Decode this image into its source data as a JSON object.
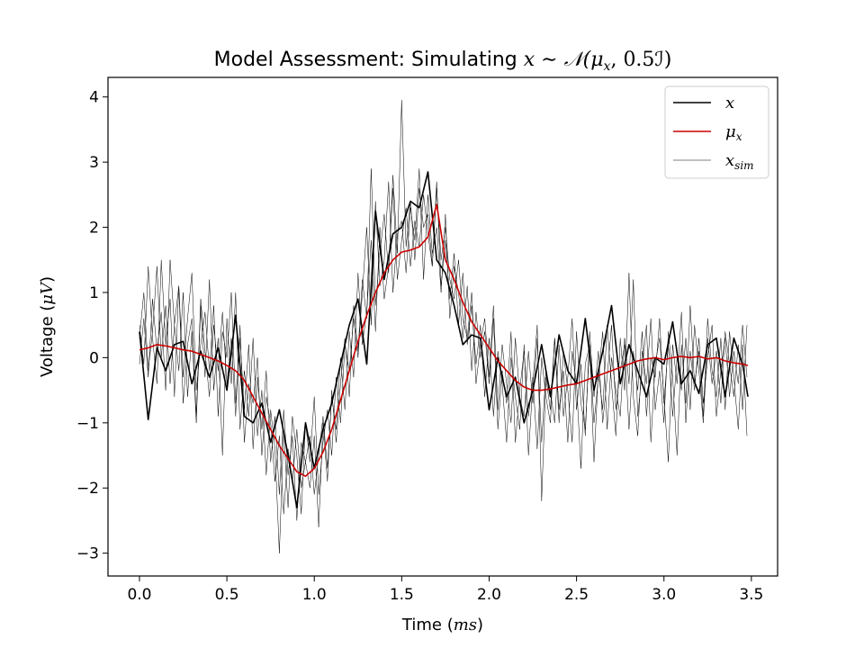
{
  "chart_data": {
    "type": "line",
    "title": {
      "prefix": "Model Assessment: Simulating ",
      "expr": "x ∼ 𝒩(μ",
      "sub": "x",
      "suffix": ", 0.5ℐ)"
    },
    "xlabel": {
      "text": "Time (",
      "var": "ms",
      "close": ")"
    },
    "ylabel": {
      "text": "Voltage (",
      "var": "μV",
      "close": ")"
    },
    "xlim": [
      -0.18,
      3.65
    ],
    "ylim": [
      -3.35,
      4.3
    ],
    "xticks": [
      0.0,
      0.5,
      1.0,
      1.5,
      2.0,
      2.5,
      3.0,
      3.5
    ],
    "xtick_labels": [
      "0.0",
      "0.5",
      "1.0",
      "1.5",
      "2.0",
      "2.5",
      "3.0",
      "3.5"
    ],
    "yticks": [
      -3,
      -2,
      -1,
      0,
      1,
      2,
      3,
      4
    ],
    "ytick_labels": [
      "−3",
      "−2",
      "−1",
      "0",
      "1",
      "2",
      "3",
      "4"
    ],
    "grid": false,
    "legend_position": "top-right",
    "legend": [
      {
        "label": "x",
        "sub": "",
        "color": "#000000"
      },
      {
        "label": "μ",
        "sub": "x",
        "color": "#cc0000"
      },
      {
        "label": "x",
        "sub": "sim",
        "color": "#000000"
      }
    ],
    "series": [
      {
        "key": "x",
        "color": "#000000",
        "x": [
          0.0,
          0.05,
          0.1,
          0.15,
          0.2,
          0.25,
          0.3,
          0.35,
          0.4,
          0.45,
          0.5,
          0.55,
          0.6,
          0.65,
          0.7,
          0.75,
          0.8,
          0.85,
          0.9,
          0.95,
          1.0,
          1.05,
          1.1,
          1.15,
          1.2,
          1.25,
          1.3,
          1.35,
          1.4,
          1.45,
          1.5,
          1.55,
          1.6,
          1.65,
          1.7,
          1.75,
          1.8,
          1.85,
          1.9,
          1.95,
          2.0,
          2.05,
          2.1,
          2.15,
          2.2,
          2.25,
          2.3,
          2.35,
          2.4,
          2.45,
          2.5,
          2.55,
          2.6,
          2.65,
          2.7,
          2.75,
          2.8,
          2.85,
          2.9,
          2.95,
          3.0,
          3.05,
          3.1,
          3.15,
          3.2,
          3.25,
          3.3,
          3.35,
          3.4,
          3.45,
          3.48
        ],
        "y": [
          0.4,
          -0.95,
          0.15,
          -0.2,
          0.2,
          0.25,
          -0.4,
          0.1,
          -0.3,
          0.15,
          -0.5,
          0.65,
          -0.9,
          -1.0,
          -0.7,
          -1.3,
          -0.8,
          -1.5,
          -2.3,
          -1.0,
          -1.7,
          -1.1,
          -0.7,
          -0.1,
          0.5,
          0.9,
          -0.1,
          2.25,
          1.2,
          1.9,
          2.0,
          2.4,
          2.3,
          2.85,
          1.5,
          1.3,
          0.8,
          0.2,
          0.35,
          0.3,
          -0.8,
          0.0,
          -0.6,
          -0.3,
          -1.0,
          -0.5,
          0.2,
          -0.6,
          0.35,
          -0.2,
          -0.4,
          0.6,
          -0.5,
          0.1,
          0.8,
          -0.4,
          0.2,
          -0.2,
          -0.6,
          0.0,
          -0.1,
          0.55,
          -0.4,
          -0.2,
          -0.55,
          0.2,
          0.3,
          -0.6,
          0.3,
          -0.1,
          -0.6
        ]
      },
      {
        "key": "mu",
        "color": "#cc0000",
        "x": [
          0.0,
          0.05,
          0.1,
          0.15,
          0.2,
          0.25,
          0.3,
          0.35,
          0.4,
          0.45,
          0.5,
          0.55,
          0.6,
          0.65,
          0.7,
          0.75,
          0.8,
          0.85,
          0.9,
          0.95,
          1.0,
          1.05,
          1.1,
          1.15,
          1.2,
          1.25,
          1.3,
          1.35,
          1.4,
          1.45,
          1.5,
          1.55,
          1.6,
          1.65,
          1.7,
          1.75,
          1.8,
          1.85,
          1.9,
          1.95,
          2.0,
          2.05,
          2.1,
          2.15,
          2.2,
          2.25,
          2.3,
          2.35,
          2.4,
          2.45,
          2.5,
          2.55,
          2.6,
          2.65,
          2.7,
          2.75,
          2.8,
          2.85,
          2.9,
          2.95,
          3.0,
          3.05,
          3.1,
          3.15,
          3.2,
          3.25,
          3.3,
          3.35,
          3.4,
          3.45,
          3.48
        ],
        "y": [
          0.12,
          0.15,
          0.2,
          0.18,
          0.15,
          0.12,
          0.1,
          0.05,
          0.0,
          -0.05,
          -0.12,
          -0.2,
          -0.35,
          -0.6,
          -0.85,
          -1.1,
          -1.35,
          -1.55,
          -1.75,
          -1.82,
          -1.7,
          -1.45,
          -1.1,
          -0.65,
          -0.2,
          0.25,
          0.65,
          1.0,
          1.3,
          1.5,
          1.62,
          1.65,
          1.7,
          1.85,
          2.35,
          1.5,
          1.2,
          0.85,
          0.55,
          0.35,
          0.15,
          -0.05,
          -0.2,
          -0.35,
          -0.45,
          -0.5,
          -0.5,
          -0.48,
          -0.45,
          -0.42,
          -0.4,
          -0.35,
          -0.3,
          -0.25,
          -0.2,
          -0.15,
          -0.1,
          -0.05,
          -0.02,
          0.0,
          -0.03,
          0.0,
          0.02,
          0.0,
          0.02,
          -0.02,
          0.0,
          -0.05,
          -0.08,
          -0.1,
          -0.12
        ]
      }
    ],
    "sim_series": [
      {
        "x": [
          0.0,
          0.025,
          0.05,
          0.075,
          0.1,
          0.125,
          0.15,
          0.175,
          0.2,
          0.225,
          0.25,
          0.275,
          0.3,
          0.325,
          0.35,
          0.375,
          0.4,
          0.425,
          0.45,
          0.475,
          0.5,
          0.525,
          0.55,
          0.575,
          0.6,
          0.625,
          0.65,
          0.675,
          0.7,
          0.725,
          0.75,
          0.775,
          0.8,
          0.825,
          0.85,
          0.875,
          0.9,
          0.925,
          0.95,
          0.975,
          1.0,
          1.025,
          1.05,
          1.075,
          1.1,
          1.125,
          1.15,
          1.175,
          1.2,
          1.225,
          1.25,
          1.275,
          1.3,
          1.325,
          1.35,
          1.375,
          1.4,
          1.425,
          1.45,
          1.475,
          1.5,
          1.525,
          1.55,
          1.575,
          1.6,
          1.625,
          1.65,
          1.675,
          1.7,
          1.725,
          1.75,
          1.775,
          1.8,
          1.825,
          1.85,
          1.875,
          1.9,
          1.925,
          1.95,
          1.975,
          2.0,
          2.025,
          2.05,
          2.075,
          2.1,
          2.125,
          2.15,
          2.175,
          2.2,
          2.225,
          2.25,
          2.275,
          2.3,
          2.325,
          2.35,
          2.375,
          2.4,
          2.425,
          2.45,
          2.475,
          2.5,
          2.525,
          2.55,
          2.575,
          2.6,
          2.625,
          2.65,
          2.675,
          2.7,
          2.725,
          2.75,
          2.775,
          2.8,
          2.825,
          2.85,
          2.875,
          2.9,
          2.925,
          2.95,
          2.975,
          3.0,
          3.025,
          3.05,
          3.075,
          3.1,
          3.125,
          3.15,
          3.175,
          3.2,
          3.225,
          3.25,
          3.275,
          3.3,
          3.325,
          3.35,
          3.375,
          3.4,
          3.425,
          3.45,
          3.475
        ],
        "y": [
          0.5,
          -0.1,
          1.4,
          0.3,
          -0.4,
          1.5,
          0.2,
          0.9,
          -0.6,
          1.1,
          -0.3,
          0.6,
          1.3,
          -0.5,
          0.2,
          0.7,
          -0.2,
          0.8,
          -0.9,
          0.4,
          0.0,
          1.0,
          -0.7,
          0.3,
          -0.8,
          0.2,
          -1.4,
          -0.3,
          -1.1,
          -0.2,
          -1.6,
          -0.9,
          -2.1,
          -0.8,
          -1.8,
          -1.2,
          -2.5,
          -1.3,
          -1.6,
          -2.0,
          -1.2,
          -2.6,
          -1.0,
          -1.9,
          -0.5,
          -1.3,
          -0.4,
          0.3,
          -0.6,
          0.8,
          0.1,
          1.2,
          0.6,
          2.9,
          0.8,
          1.6,
          2.2,
          1.3,
          2.8,
          1.6,
          3.95,
          1.7,
          2.4,
          1.5,
          2.6,
          2.0,
          2.2,
          1.4,
          2.7,
          1.1,
          1.8,
          0.9,
          1.6,
          0.5,
          1.3,
          0.2,
          0.8,
          -0.1,
          0.5,
          -0.6,
          0.3,
          -0.9,
          0.1,
          -0.4,
          -1.3,
          0.0,
          -0.6,
          -1.1,
          0.2,
          -1.5,
          -0.4,
          0.5,
          -2.2,
          -0.3,
          -0.8,
          0.3,
          -1.0,
          0.1,
          -0.5,
          -1.3,
          0.4,
          -0.7,
          -1.1,
          0.2,
          -1.6,
          -0.2,
          -0.8,
          0.5,
          -0.4,
          -1.2,
          0.3,
          -0.5,
          1.3,
          -0.6,
          -1.2,
          0.1,
          -0.4,
          0.6,
          -0.8,
          -0.2,
          -1.0,
          0.4,
          -0.3,
          -1.5,
          0.2,
          -0.7,
          0.8,
          -0.4,
          0.1,
          -0.9,
          0.6,
          -0.2,
          -0.6,
          0.3,
          -0.8,
          0.4,
          -0.3,
          -1.1,
          0.2,
          -1.2
        ]
      },
      {
        "x": [
          0.0,
          0.025,
          0.05,
          0.075,
          0.1,
          0.125,
          0.15,
          0.175,
          0.2,
          0.225,
          0.25,
          0.275,
          0.3,
          0.325,
          0.35,
          0.375,
          0.4,
          0.425,
          0.45,
          0.475,
          0.5,
          0.525,
          0.55,
          0.575,
          0.6,
          0.625,
          0.65,
          0.675,
          0.7,
          0.725,
          0.75,
          0.775,
          0.8,
          0.825,
          0.85,
          0.875,
          0.9,
          0.925,
          0.95,
          0.975,
          1.0,
          1.025,
          1.05,
          1.075,
          1.1,
          1.125,
          1.15,
          1.175,
          1.2,
          1.225,
          1.25,
          1.275,
          1.3,
          1.325,
          1.35,
          1.375,
          1.4,
          1.425,
          1.45,
          1.475,
          1.5,
          1.525,
          1.55,
          1.575,
          1.6,
          1.625,
          1.65,
          1.675,
          1.7,
          1.725,
          1.75,
          1.775,
          1.8,
          1.825,
          1.85,
          1.875,
          1.9,
          1.925,
          1.95,
          1.975,
          2.0,
          2.025,
          2.05,
          2.075,
          2.1,
          2.125,
          2.15,
          2.175,
          2.2,
          2.225,
          2.25,
          2.275,
          2.3,
          2.325,
          2.35,
          2.375,
          2.4,
          2.425,
          2.45,
          2.475,
          2.5,
          2.525,
          2.55,
          2.575,
          2.6,
          2.625,
          2.65,
          2.675,
          2.7,
          2.725,
          2.75,
          2.775,
          2.8,
          2.825,
          2.85,
          2.875,
          2.9,
          2.925,
          2.95,
          2.975,
          3.0,
          3.025,
          3.05,
          3.075,
          3.1,
          3.125,
          3.15,
          3.175,
          3.2,
          3.225,
          3.25,
          3.275,
          3.3,
          3.325,
          3.35,
          3.375,
          3.4,
          3.425,
          3.45,
          3.475
        ],
        "y": [
          -0.1,
          0.6,
          -0.3,
          0.9,
          0.1,
          0.7,
          -0.5,
          1.5,
          0.5,
          -0.2,
          1.0,
          -0.6,
          0.4,
          -1.0,
          0.8,
          -0.3,
          1.2,
          -0.5,
          0.3,
          -1.5,
          0.6,
          -0.4,
          1.0,
          -1.1,
          -0.2,
          -0.9,
          0.3,
          -1.2,
          -0.5,
          -1.8,
          -0.8,
          -1.4,
          -3.0,
          -1.1,
          -2.3,
          -0.9,
          -1.5,
          -2.4,
          -1.0,
          -1.6,
          -0.6,
          -2.1,
          -1.3,
          -0.8,
          -1.5,
          -0.3,
          -1.0,
          0.2,
          -0.2,
          0.6,
          0.0,
          1.0,
          2.0,
          0.5,
          2.4,
          1.1,
          1.5,
          2.7,
          1.0,
          1.9,
          2.1,
          1.3,
          2.3,
          1.8,
          2.9,
          1.2,
          2.5,
          1.6,
          2.0,
          1.0,
          2.2,
          0.6,
          1.4,
          1.0,
          0.3,
          1.1,
          -0.2,
          0.7,
          0.0,
          0.4,
          -0.4,
          0.6,
          -1.1,
          -0.2,
          -0.7,
          0.4,
          -1.3,
          -0.5,
          0.1,
          -0.9,
          -0.3,
          -1.4,
          0.0,
          -0.6,
          -1.0,
          0.3,
          -0.8,
          -0.2,
          -1.3,
          0.1,
          -0.4,
          -1.7,
          -0.1,
          0.2,
          -1.0,
          -0.3,
          0.4,
          -1.1,
          0.0,
          -0.5,
          -0.9,
          0.3,
          -0.4,
          1.2,
          -0.9,
          -0.2,
          0.5,
          -1.3,
          -0.1,
          0.3,
          -0.6,
          -1.6,
          0.2,
          -0.4,
          0.7,
          -1.0,
          0.1,
          -0.5,
          0.3,
          -0.7,
          0.0,
          0.5,
          -0.9,
          -0.2,
          0.3,
          -0.6,
          0.1,
          -0.4,
          0.5,
          -0.3
        ]
      },
      {
        "x": [
          0.0,
          0.025,
          0.05,
          0.075,
          0.1,
          0.125,
          0.15,
          0.175,
          0.2,
          0.225,
          0.25,
          0.275,
          0.3,
          0.325,
          0.35,
          0.375,
          0.4,
          0.425,
          0.45,
          0.475,
          0.5,
          0.525,
          0.55,
          0.575,
          0.6,
          0.625,
          0.65,
          0.675,
          0.7,
          0.725,
          0.75,
          0.775,
          0.8,
          0.825,
          0.85,
          0.875,
          0.9,
          0.925,
          0.95,
          0.975,
          1.0,
          1.025,
          1.05,
          1.075,
          1.1,
          1.125,
          1.15,
          1.175,
          1.2,
          1.225,
          1.25,
          1.275,
          1.3,
          1.325,
          1.35,
          1.375,
          1.4,
          1.425,
          1.45,
          1.475,
          1.5,
          1.525,
          1.55,
          1.575,
          1.6,
          1.625,
          1.65,
          1.675,
          1.7,
          1.725,
          1.75,
          1.775,
          1.8,
          1.825,
          1.85,
          1.875,
          1.9,
          1.925,
          1.95,
          1.975,
          2.0,
          2.025,
          2.05,
          2.075,
          2.1,
          2.125,
          2.15,
          2.175,
          2.2,
          2.225,
          2.25,
          2.275,
          2.3,
          2.325,
          2.35,
          2.375,
          2.4,
          2.425,
          2.45,
          2.475,
          2.5,
          2.525,
          2.55,
          2.575,
          2.6,
          2.625,
          2.65,
          2.675,
          2.7,
          2.725,
          2.75,
          2.775,
          2.8,
          2.825,
          2.85,
          2.875,
          2.9,
          2.925,
          2.95,
          2.975,
          3.0,
          3.025,
          3.05,
          3.075,
          3.1,
          3.125,
          3.15,
          3.175,
          3.2,
          3.225,
          3.25,
          3.275,
          3.3,
          3.325,
          3.35,
          3.375,
          3.4,
          3.425,
          3.45,
          3.475
        ],
        "y": [
          0.3,
          1.0,
          -0.2,
          0.4,
          1.4,
          0.0,
          0.8,
          -0.4,
          0.5,
          1.1,
          -0.7,
          0.2,
          0.6,
          -0.9,
          0.9,
          0.1,
          -0.6,
          0.5,
          -0.2,
          0.7,
          -0.4,
          0.3,
          -0.9,
          0.5,
          -1.3,
          -0.4,
          -0.7,
          0.0,
          -1.5,
          -0.6,
          -1.0,
          -1.9,
          -1.2,
          -2.4,
          -1.4,
          -1.9,
          -1.1,
          -2.0,
          -1.6,
          -1.2,
          -2.1,
          -1.5,
          -0.9,
          -1.7,
          -0.6,
          -1.1,
          0.0,
          -0.8,
          0.4,
          -0.3,
          1.3,
          0.2,
          0.7,
          1.8,
          0.4,
          2.0,
          0.9,
          1.4,
          2.6,
          1.2,
          1.8,
          2.3,
          1.4,
          2.1,
          1.7,
          2.5,
          1.9,
          1.4,
          2.6,
          1.5,
          2.0,
          1.2,
          0.9,
          1.5,
          0.6,
          0.3,
          1.0,
          -0.4,
          0.2,
          0.6,
          -0.3,
          0.8,
          -0.8,
          0.2,
          -0.4,
          -1.0,
          0.3,
          -0.6,
          -0.9,
          0.1,
          -0.7,
          0.3,
          -1.3,
          -0.2,
          -0.5,
          -1.0,
          0.2,
          -0.9,
          -0.3,
          0.6,
          -0.8,
          -0.1,
          -1.2,
          0.4,
          -0.6,
          0.1,
          -1.0,
          -0.3,
          0.5,
          -0.8,
          -0.2,
          0.2,
          -1.1,
          0.1,
          -0.5,
          0.4,
          -0.9,
          0.0,
          -0.3,
          0.6,
          -0.7,
          0.2,
          -0.9,
          0.0,
          -0.5,
          0.3,
          -0.8,
          0.5,
          -0.2,
          -1.0,
          0.3,
          -0.4,
          0.1,
          -0.7,
          0.4,
          -0.1,
          -0.6,
          0.2,
          -0.8,
          0.5
        ]
      }
    ]
  }
}
